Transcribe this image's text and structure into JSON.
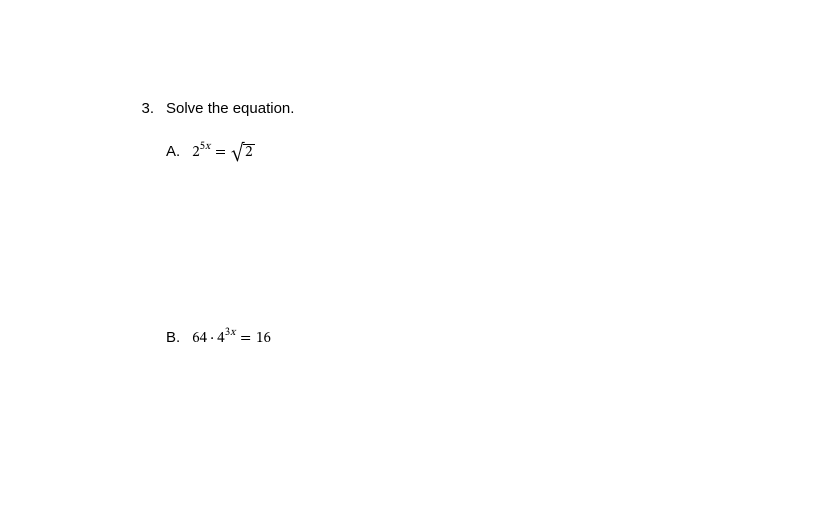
{
  "question": {
    "number": "3.",
    "prompt": "Solve the equation."
  },
  "partA": {
    "label": "A.",
    "base1": "2",
    "exp1_coef": "5",
    "exp1_var": "x",
    "eq": "=",
    "radicand": "2"
  },
  "partB": {
    "label": "B.",
    "term1": "64",
    "dot": "·",
    "base2": "4",
    "exp2_coef": "3",
    "exp2_var": "x",
    "eq": "=",
    "rhs": "16"
  }
}
